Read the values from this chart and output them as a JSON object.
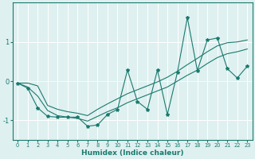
{
  "x": [
    0,
    1,
    2,
    3,
    4,
    5,
    6,
    7,
    8,
    9,
    10,
    11,
    12,
    13,
    14,
    15,
    16,
    17,
    18,
    19,
    20,
    21,
    22,
    23
  ],
  "y_zigzag": [
    -0.05,
    -0.18,
    -0.68,
    -0.9,
    -0.92,
    -0.92,
    -0.92,
    -1.15,
    -1.12,
    -0.85,
    -0.72,
    0.28,
    -0.52,
    -0.72,
    0.28,
    -0.85,
    0.22,
    1.62,
    0.27,
    1.05,
    1.1,
    0.32,
    0.08,
    0.38
  ],
  "y_upper": [
    -0.05,
    -0.05,
    -0.12,
    -0.62,
    -0.72,
    -0.78,
    -0.82,
    -0.88,
    -0.72,
    -0.58,
    -0.45,
    -0.32,
    -0.22,
    -0.12,
    -0.02,
    0.1,
    0.25,
    0.42,
    0.58,
    0.75,
    0.9,
    0.98,
    1.0,
    1.05
  ],
  "y_lower": [
    -0.05,
    -0.15,
    -0.38,
    -0.75,
    -0.88,
    -0.92,
    -0.95,
    -1.02,
    -0.9,
    -0.78,
    -0.68,
    -0.55,
    -0.45,
    -0.35,
    -0.25,
    -0.15,
    0.0,
    0.15,
    0.28,
    0.45,
    0.6,
    0.7,
    0.75,
    0.82
  ],
  "color": "#1a7a6e",
  "bg_color": "#dff0f0",
  "grid_major_color": "#c8e0e0",
  "grid_minor_color": "#e0ecec",
  "red_line_color": "#dd3333",
  "xlabel": "Humidex (Indice chaleur)",
  "xlim": [
    -0.5,
    23.5
  ],
  "ylim": [
    -1.5,
    2.0
  ],
  "yticks": [
    -1,
    0,
    1
  ],
  "xticks": [
    0,
    1,
    2,
    3,
    4,
    5,
    6,
    7,
    8,
    9,
    10,
    11,
    12,
    13,
    14,
    15,
    16,
    17,
    18,
    19,
    20,
    21,
    22,
    23
  ],
  "figwidth": 3.2,
  "figheight": 2.0,
  "dpi": 100
}
